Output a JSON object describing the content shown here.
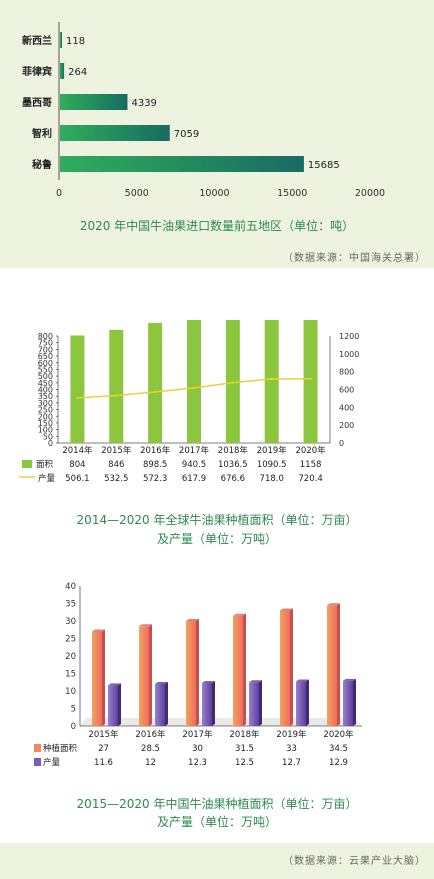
{
  "chart_data": [
    {
      "type": "bar",
      "orientation": "horizontal",
      "title": "2020 年中国牛油果进口数量前五地区（单位：吨）",
      "categories": [
        "新西兰",
        "菲律宾",
        "墨西哥",
        "智利",
        "秘鲁"
      ],
      "values": [
        118,
        264,
        4339,
        7059,
        15685
      ],
      "x_ticks": [
        "0",
        "5000",
        "10000",
        "15000",
        "20000"
      ],
      "xlim": [
        0,
        20000
      ],
      "colors": {
        "start": "#2fae5b",
        "end": "#176b62"
      }
    },
    {
      "type": "bar",
      "title_lines": [
        "2014—2020 年全球牛油果种植面积（单位：万亩）",
        "及产量（单位：万吨）"
      ],
      "categories": [
        "2014年",
        "2015年",
        "2016年",
        "2017年",
        "2018年",
        "2019年",
        "2020年"
      ],
      "series": [
        {
          "name": "面积",
          "type": "bar",
          "axis": "left",
          "color": "#8cc63f",
          "values": [
            804,
            846,
            898.5,
            940.5,
            1036.5,
            1090.5,
            1158
          ],
          "labels": [
            "804",
            "846",
            "898.5",
            "940.5",
            "1036.5",
            "1090.5",
            "1158"
          ]
        },
        {
          "name": "产量",
          "type": "line",
          "axis": "right",
          "color": "#e8d238",
          "values": [
            506.1,
            532.5,
            572.3,
            617.9,
            676.6,
            718.0,
            720.4
          ],
          "labels": [
            "506.1",
            "532.5",
            "572.3",
            "617.9",
            "676.6",
            "718.0",
            "720.4"
          ]
        }
      ],
      "left_ticks": [
        "0",
        "50",
        "100",
        "150",
        "200",
        "250",
        "300",
        "350",
        "400",
        "450",
        "500",
        "550",
        "600",
        "650",
        "700",
        "750",
        "800"
      ],
      "right_ticks": [
        "0",
        "200",
        "400",
        "600",
        "800",
        "1000",
        "1200"
      ],
      "left_ylim": [
        0,
        800
      ],
      "right_ylim": [
        0,
        1200
      ]
    },
    {
      "type": "bar",
      "style": "3d-columns",
      "title_lines": [
        "2015—2020 年中国牛油果种植面积（单位：万亩）",
        "及产量（单位：万吨）"
      ],
      "categories": [
        "2015年",
        "2016年",
        "2017年",
        "2018年",
        "2019年",
        "2020年"
      ],
      "series": [
        {
          "name": "种植面积",
          "color": "#f08a5d",
          "values": [
            27,
            28.5,
            30,
            31.5,
            33,
            34.5
          ],
          "labels": [
            "27",
            "28.5",
            "30",
            "31.5",
            "33",
            "34.5"
          ]
        },
        {
          "name": "产量",
          "color": "#7b5bb6",
          "values": [
            11.6,
            12,
            12.3,
            12.5,
            12.7,
            12.9
          ],
          "labels": [
            "11.6",
            "12",
            "12.3",
            "12.5",
            "12.7",
            "12.9"
          ]
        }
      ],
      "y_ticks": [
        "0",
        "5",
        "10",
        "15",
        "20",
        "25",
        "30",
        "35",
        "40"
      ],
      "ylim": [
        0,
        40
      ]
    }
  ],
  "sources": {
    "first": "（数据来源：中国海关总署）",
    "second": "（数据来源：云果产业大脑）"
  }
}
